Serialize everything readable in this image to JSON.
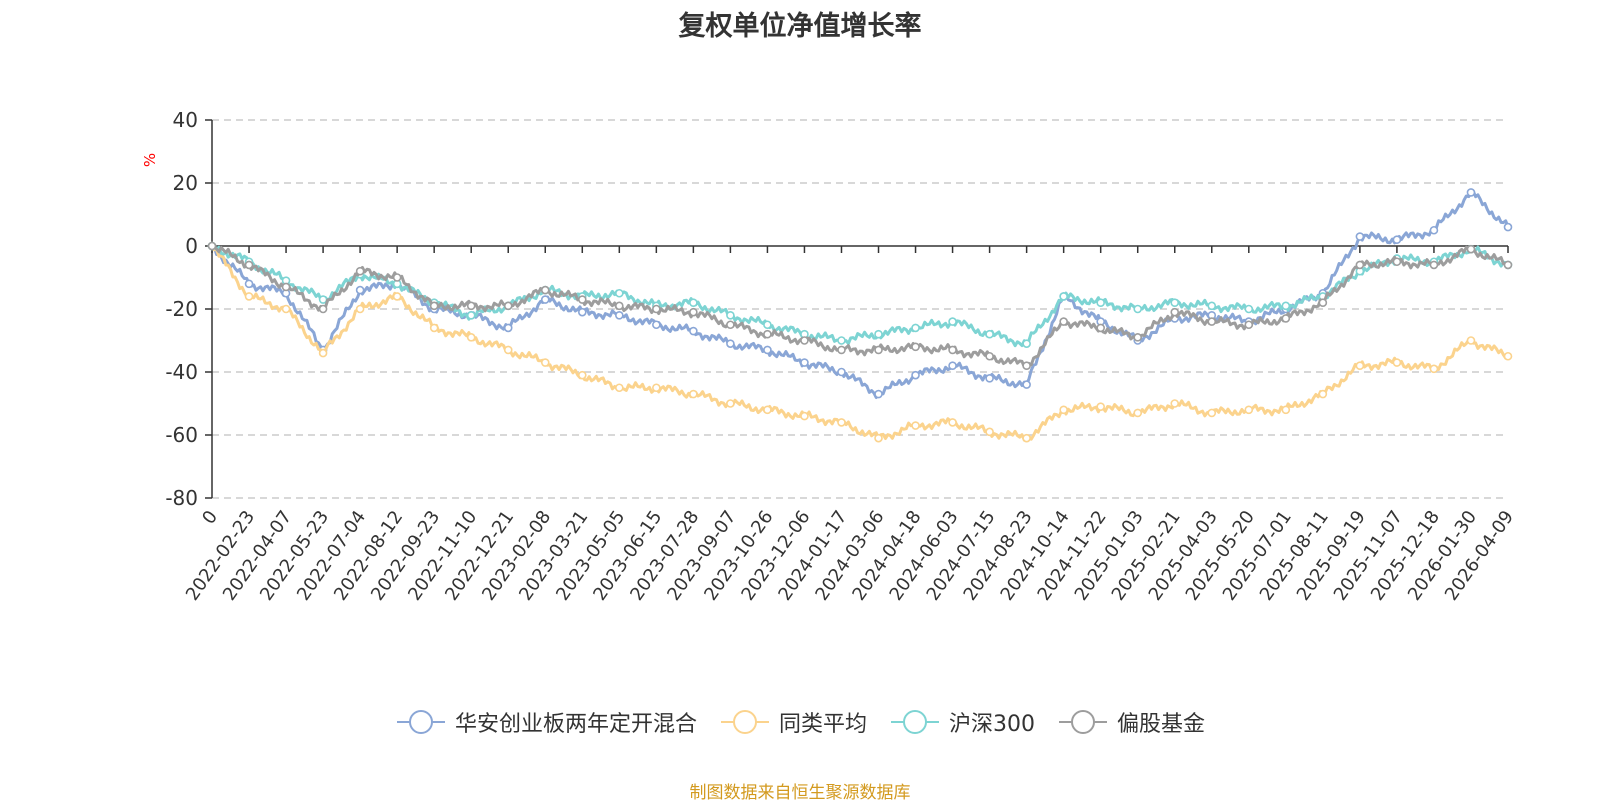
{
  "chart_data": {
    "type": "line",
    "title": "复权单位净值增长率",
    "ylabel": "%",
    "ylim": [
      -80,
      40
    ],
    "yticks": [
      40,
      20,
      0,
      -20,
      -40,
      -60,
      -80
    ],
    "grid": true,
    "legend_position": "bottom",
    "categories": [
      "0",
      "2022-02-23",
      "2022-04-07",
      "2022-05-23",
      "2022-07-04",
      "2022-08-12",
      "2022-09-23",
      "2022-11-10",
      "2022-12-21",
      "2023-02-08",
      "2023-03-21",
      "2023-05-05",
      "2023-06-15",
      "2023-07-28",
      "2023-09-07",
      "2023-10-26",
      "2023-12-06",
      "2024-01-17",
      "2024-03-06",
      "2024-04-18",
      "2024-06-03",
      "2024-07-15",
      "2024-08-23",
      "2024-10-14",
      "2024-11-22",
      "2025-01-03",
      "2025-02-21",
      "2025-04-03",
      "2025-05-20",
      "2025-07-01",
      "2025-08-11",
      "2025-09-19",
      "2025-11-07",
      "2025-12-18",
      "2026-01-30",
      "2026-04-09"
    ],
    "series": [
      {
        "name": "华安创业板两年定开混合",
        "color": "#8aa6d6",
        "values": [
          0,
          -12,
          -15,
          -33,
          -14,
          -12,
          -20,
          -22,
          -26,
          -17,
          -21,
          -22,
          -25,
          -27,
          -31,
          -33,
          -37,
          -40,
          -47,
          -41,
          -38,
          -42,
          -44,
          -16,
          -24,
          -30,
          -23,
          -22,
          -24,
          -20,
          -15,
          3,
          2,
          5,
          17,
          6
        ]
      },
      {
        "name": "同类平均",
        "color": "#fbd38d",
        "values": [
          0,
          -16,
          -20,
          -34,
          -20,
          -16,
          -26,
          -29,
          -33,
          -37,
          -41,
          -45,
          -45,
          -47,
          -50,
          -52,
          -54,
          -56,
          -61,
          -57,
          -56,
          -59,
          -61,
          -52,
          -51,
          -53,
          -50,
          -53,
          -52,
          -52,
          -47,
          -38,
          -37,
          -39,
          -30,
          -35
        ]
      },
      {
        "name": "沪深300",
        "color": "#7dd4d3",
        "values": [
          0,
          -5,
          -11,
          -17,
          -9,
          -12,
          -18,
          -22,
          -19,
          -14,
          -16,
          -15,
          -19,
          -18,
          -22,
          -25,
          -28,
          -30,
          -28,
          -26,
          -24,
          -28,
          -31,
          -16,
          -18,
          -20,
          -18,
          -19,
          -20,
          -19,
          -16,
          -8,
          -4,
          -5,
          -1,
          -6
        ]
      },
      {
        "name": "偏股基金",
        "color": "#9d9d9d",
        "values": [
          0,
          -6,
          -13,
          -20,
          -8,
          -10,
          -19,
          -19,
          -19,
          -14,
          -17,
          -19,
          -20,
          -21,
          -25,
          -28,
          -30,
          -33,
          -33,
          -32,
          -33,
          -35,
          -38,
          -24,
          -26,
          -29,
          -21,
          -24,
          -25,
          -23,
          -18,
          -6,
          -5,
          -6,
          -1,
          -6
        ]
      }
    ]
  },
  "source_text": "制图数据来自恒生聚源数据库"
}
